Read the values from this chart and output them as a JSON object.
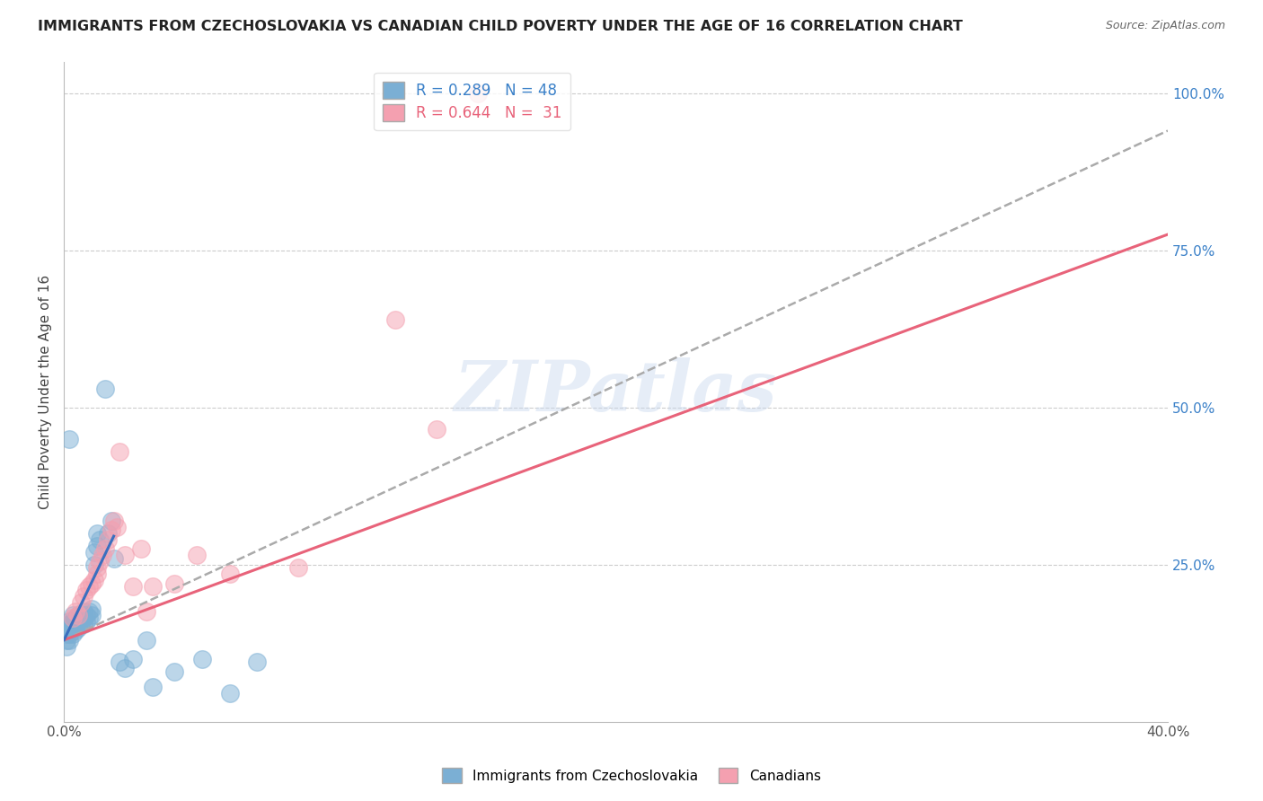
{
  "title": "IMMIGRANTS FROM CZECHOSLOVAKIA VS CANADIAN CHILD POVERTY UNDER THE AGE OF 16 CORRELATION CHART",
  "source": "Source: ZipAtlas.com",
  "ylabel": "Child Poverty Under the Age of 16",
  "xlim": [
    0.0,
    0.4
  ],
  "ylim": [
    0.0,
    1.05
  ],
  "yticks": [
    0.0,
    0.25,
    0.5,
    0.75,
    1.0
  ],
  "ytick_labels": [
    "",
    "25.0%",
    "50.0%",
    "75.0%",
    "100.0%"
  ],
  "xticks": [
    0.0,
    0.05,
    0.1,
    0.15,
    0.2,
    0.25,
    0.3,
    0.35,
    0.4
  ],
  "xtick_labels": [
    "0.0%",
    "",
    "",
    "",
    "",
    "",
    "",
    "",
    "40.0%"
  ],
  "legend_label_blue": "R = 0.289   N = 48",
  "legend_label_pink": "R = 0.644   N =  31",
  "legend_label_blue_bottom": "Immigrants from Czechoslovakia",
  "legend_label_pink_bottom": "Canadians",
  "blue_color": "#7bafd4",
  "pink_color": "#f4a0b0",
  "blue_line_color": "#3a6fbf",
  "pink_line_color": "#e8637a",
  "gray_dash_color": "#aaaaaa",
  "blue_scatter": [
    [
      0.001,
      0.12
    ],
    [
      0.001,
      0.13
    ],
    [
      0.001,
      0.14
    ],
    [
      0.001,
      0.15
    ],
    [
      0.002,
      0.13
    ],
    [
      0.002,
      0.14
    ],
    [
      0.002,
      0.155
    ],
    [
      0.002,
      0.16
    ],
    [
      0.003,
      0.14
    ],
    [
      0.003,
      0.15
    ],
    [
      0.003,
      0.16
    ],
    [
      0.003,
      0.17
    ],
    [
      0.004,
      0.145
    ],
    [
      0.004,
      0.155
    ],
    [
      0.004,
      0.165
    ],
    [
      0.005,
      0.15
    ],
    [
      0.005,
      0.16
    ],
    [
      0.005,
      0.17
    ],
    [
      0.006,
      0.155
    ],
    [
      0.006,
      0.165
    ],
    [
      0.007,
      0.155
    ],
    [
      0.007,
      0.165
    ],
    [
      0.007,
      0.175
    ],
    [
      0.008,
      0.16
    ],
    [
      0.008,
      0.17
    ],
    [
      0.009,
      0.165
    ],
    [
      0.009,
      0.175
    ],
    [
      0.01,
      0.17
    ],
    [
      0.01,
      0.18
    ],
    [
      0.011,
      0.25
    ],
    [
      0.011,
      0.27
    ],
    [
      0.012,
      0.28
    ],
    [
      0.012,
      0.3
    ],
    [
      0.013,
      0.29
    ],
    [
      0.015,
      0.53
    ],
    [
      0.016,
      0.3
    ],
    [
      0.017,
      0.32
    ],
    [
      0.018,
      0.26
    ],
    [
      0.02,
      0.095
    ],
    [
      0.022,
      0.085
    ],
    [
      0.025,
      0.1
    ],
    [
      0.03,
      0.13
    ],
    [
      0.032,
      0.055
    ],
    [
      0.04,
      0.08
    ],
    [
      0.05,
      0.1
    ],
    [
      0.06,
      0.045
    ],
    [
      0.07,
      0.095
    ],
    [
      0.002,
      0.45
    ]
  ],
  "pink_scatter": [
    [
      0.003,
      0.165
    ],
    [
      0.004,
      0.175
    ],
    [
      0.005,
      0.17
    ],
    [
      0.006,
      0.19
    ],
    [
      0.007,
      0.2
    ],
    [
      0.008,
      0.21
    ],
    [
      0.009,
      0.215
    ],
    [
      0.01,
      0.22
    ],
    [
      0.011,
      0.225
    ],
    [
      0.012,
      0.235
    ],
    [
      0.012,
      0.245
    ],
    [
      0.013,
      0.255
    ],
    [
      0.014,
      0.265
    ],
    [
      0.015,
      0.275
    ],
    [
      0.016,
      0.29
    ],
    [
      0.017,
      0.305
    ],
    [
      0.018,
      0.32
    ],
    [
      0.019,
      0.31
    ],
    [
      0.02,
      0.43
    ],
    [
      0.022,
      0.265
    ],
    [
      0.025,
      0.215
    ],
    [
      0.028,
      0.275
    ],
    [
      0.03,
      0.175
    ],
    [
      0.032,
      0.215
    ],
    [
      0.04,
      0.22
    ],
    [
      0.048,
      0.265
    ],
    [
      0.06,
      0.235
    ],
    [
      0.085,
      0.245
    ],
    [
      0.12,
      0.64
    ],
    [
      0.135,
      0.465
    ],
    [
      0.15,
      1.0
    ]
  ],
  "blue_line": [
    [
      0.0,
      0.13
    ],
    [
      0.4,
      0.94
    ]
  ],
  "pink_line": [
    [
      0.0,
      0.13
    ],
    [
      0.4,
      0.775
    ]
  ],
  "watermark": "ZIPatlas",
  "background_color": "#ffffff",
  "grid_color": "#cccccc"
}
